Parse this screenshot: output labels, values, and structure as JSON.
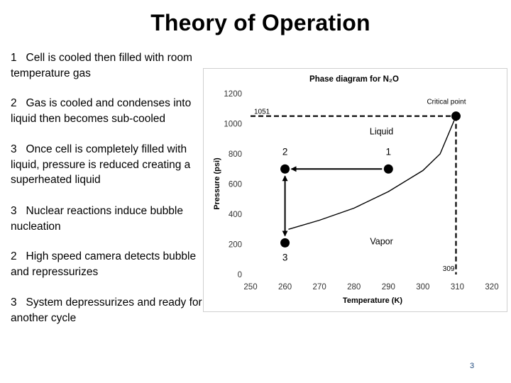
{
  "slide": {
    "title": "Theory of Operation",
    "page_number": "3"
  },
  "bullets": [
    {
      "number": "1",
      "text": "Cell is cooled then filled with room temperature gas"
    },
    {
      "number": "2",
      "text": "Gas is cooled and condenses into liquid then becomes sub-cooled"
    },
    {
      "number": "3",
      "text": "Once cell is completely filled with liquid, pressure is reduced creating a superheated liquid"
    },
    {
      "number": "3",
      "text": "Nuclear reactions induce bubble nucleation"
    },
    {
      "number": "2",
      "text": "High speed camera detects bubble and repressurizes"
    },
    {
      "number": "3",
      "text": "System depressurizes and ready for another cycle"
    }
  ],
  "chart_data": {
    "type": "line",
    "title": "Phase diagram for N₂O",
    "xlabel": "Temperature (K)",
    "ylabel": "Pressure (psi)",
    "xlim": [
      250,
      320
    ],
    "ylim": [
      0,
      1200
    ],
    "x_ticks": [
      250,
      260,
      270,
      280,
      290,
      300,
      310,
      320
    ],
    "y_ticks": [
      0,
      200,
      400,
      600,
      800,
      1000,
      1200
    ],
    "grid": false,
    "series": [
      {
        "values_xy": [
          [
            261,
            300
          ],
          [
            270,
            360
          ],
          [
            280,
            440
          ],
          [
            290,
            550
          ],
          [
            300,
            690
          ],
          [
            305,
            800
          ],
          [
            309.6,
            1051
          ]
        ],
        "color": "#000000"
      }
    ],
    "critical_point": {
      "x": 309.6,
      "y": 1051,
      "label": "Critical point"
    },
    "reference_values": {
      "pressure": "1051",
      "temperature": "309"
    },
    "regions": {
      "liquid": "Liquid",
      "vapor": "Vapor"
    },
    "points": [
      {
        "label": "1",
        "x": 290,
        "y": 700
      },
      {
        "label": "2",
        "x": 260,
        "y": 700
      },
      {
        "label": "3",
        "x": 260,
        "y": 210
      }
    ]
  }
}
